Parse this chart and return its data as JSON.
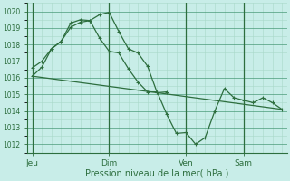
{
  "background_color": "#c8ede8",
  "grid_major_color": "#4a9a78",
  "grid_minor_color": "#a8d8c8",
  "line_color": "#2d6e3e",
  "xlabel": "Pression niveau de la mer( hPa )",
  "ylim": [
    1011.5,
    1020.5
  ],
  "yticks": [
    1012,
    1013,
    1014,
    1015,
    1016,
    1017,
    1018,
    1019,
    1020
  ],
  "xtick_labels": [
    "Jeu",
    "Dim",
    "Ven",
    "Sam"
  ],
  "xtick_positions": [
    0,
    16,
    32,
    44
  ],
  "xlim": [
    -1,
    53
  ],
  "vline_positions": [
    0,
    16,
    32,
    44
  ],
  "line1_x": [
    0,
    2,
    4,
    6,
    8,
    10,
    12,
    14,
    16,
    18,
    20,
    22,
    24,
    26,
    28
  ],
  "line1_y": [
    1016.1,
    1016.65,
    1017.75,
    1018.2,
    1019.05,
    1019.35,
    1019.45,
    1019.8,
    1019.95,
    1018.8,
    1017.75,
    1017.5,
    1016.7,
    1015.1,
    1015.15
  ],
  "line2_x": [
    0,
    2,
    4,
    6,
    8,
    10,
    12,
    14,
    16,
    18,
    20,
    22,
    24,
    26,
    28,
    30,
    32,
    34,
    36,
    38,
    40,
    42,
    44,
    46,
    48,
    50,
    52
  ],
  "line2_y": [
    1016.6,
    1017.0,
    1017.75,
    1018.2,
    1019.3,
    1019.5,
    1019.45,
    1018.4,
    1017.6,
    1017.5,
    1016.55,
    1015.75,
    1015.15,
    1015.15,
    1013.8,
    1012.65,
    1012.7,
    1012.0,
    1012.4,
    1014.0,
    1015.35,
    1014.8,
    1014.65,
    1014.5,
    1014.8,
    1014.5,
    1014.1
  ],
  "line3_x": [
    0,
    52
  ],
  "line3_y": [
    1016.1,
    1014.1
  ]
}
